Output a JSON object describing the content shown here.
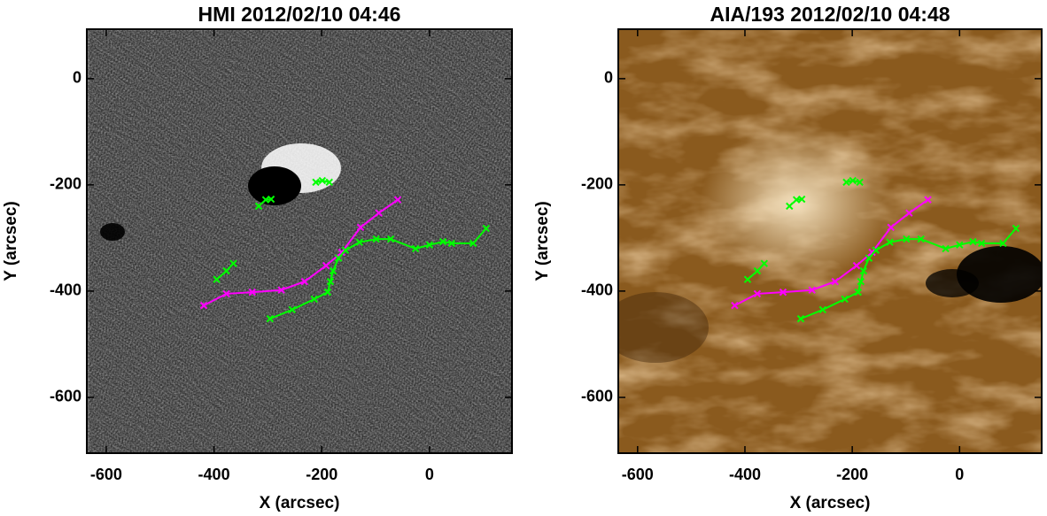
{
  "chart_data": [
    {
      "type": "line",
      "title": "HMI 2012/02/10 04:46",
      "x_label": "X (arcsec)",
      "y_label": "Y (arcsec)",
      "xlim": [
        -636,
        153
      ],
      "ylim": [
        -705,
        93
      ],
      "xticks": [
        -600,
        -400,
        -200,
        0
      ],
      "yticks": [
        -600,
        -400,
        -200,
        0
      ],
      "series": [
        {
          "color": "#ff00ff",
          "x": [
            -419,
            -377,
            -329,
            -275,
            -232,
            -192,
            -163,
            -128,
            -94,
            -59
          ],
          "values": [
            -427,
            -405,
            -402,
            -398,
            -382,
            -352,
            -327,
            -280,
            -253,
            -228
          ]
        },
        {
          "color": "#00ff00",
          "x": [
            -296,
            -255,
            -214,
            -189,
            -184,
            -179,
            -169,
            -156,
            -130,
            -99,
            -72,
            -26,
            0,
            25,
            41,
            81,
            105
          ],
          "values": [
            -452,
            -435,
            -415,
            -402,
            -382,
            -362,
            -338,
            -323,
            -308,
            -302,
            -302,
            -320,
            -313,
            -307,
            -310,
            -310,
            -282
          ]
        },
        {
          "color": "#00ff00",
          "x": [
            -395,
            -377,
            -364
          ],
          "values": [
            -378,
            -362,
            -348
          ]
        },
        {
          "color": "#00ff00",
          "x": [
            -317,
            -304,
            -294
          ],
          "values": [
            -240,
            -228,
            -227
          ]
        },
        {
          "color": "#00ff00",
          "x": [
            -211,
            -199,
            -186
          ],
          "values": [
            -195,
            -192,
            -195
          ]
        }
      ]
    },
    {
      "type": "line",
      "title": "AIA/193 2012/02/10 04:48",
      "x_label": "X (arcsec)",
      "y_label": "Y (arcsec)",
      "xlim": [
        -636,
        153
      ],
      "ylim": [
        -705,
        93
      ],
      "xticks": [
        -600,
        -400,
        -200,
        0
      ],
      "yticks": [
        -600,
        -400,
        -200,
        0
      ],
      "series": [
        {
          "color": "#ff00ff",
          "x": [
            -419,
            -377,
            -329,
            -275,
            -232,
            -192,
            -163,
            -128,
            -94,
            -59
          ],
          "values": [
            -427,
            -405,
            -402,
            -398,
            -382,
            -352,
            -327,
            -280,
            -253,
            -228
          ]
        },
        {
          "color": "#00ff00",
          "x": [
            -296,
            -255,
            -214,
            -189,
            -184,
            -179,
            -169,
            -156,
            -130,
            -99,
            -72,
            -26,
            0,
            25,
            41,
            81,
            105
          ],
          "values": [
            -452,
            -435,
            -415,
            -402,
            -382,
            -362,
            -338,
            -323,
            -308,
            -302,
            -302,
            -320,
            -313,
            -307,
            -310,
            -310,
            -282
          ]
        },
        {
          "color": "#00ff00",
          "x": [
            -395,
            -377,
            -364
          ],
          "values": [
            -378,
            -362,
            -348
          ]
        },
        {
          "color": "#00ff00",
          "x": [
            -317,
            -304,
            -294
          ],
          "values": [
            -240,
            -228,
            -227
          ]
        },
        {
          "color": "#00ff00",
          "x": [
            -211,
            -199,
            -186
          ],
          "values": [
            -195,
            -192,
            -195
          ]
        }
      ]
    }
  ]
}
